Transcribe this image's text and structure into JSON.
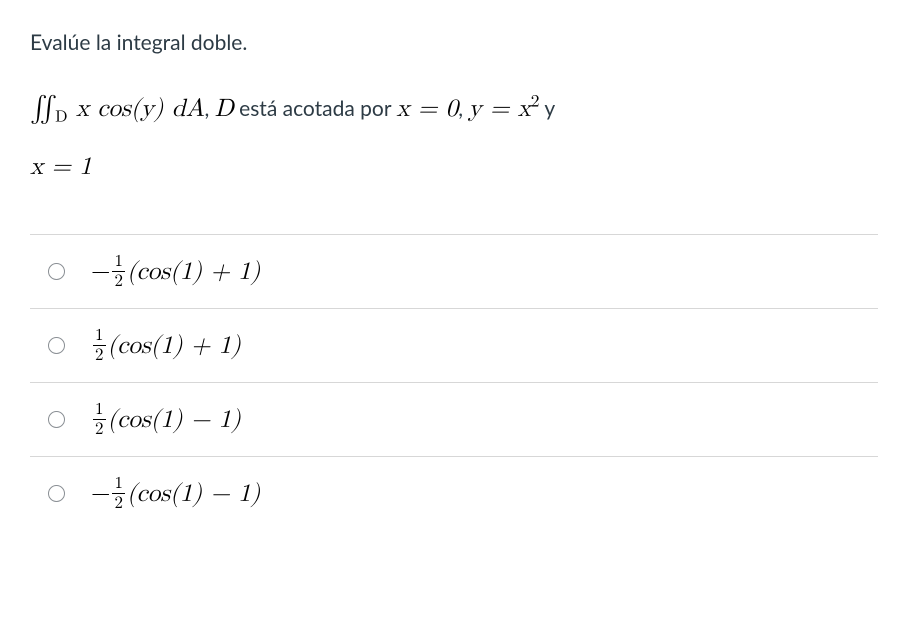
{
  "prompt": "Evalúe la integral doble.",
  "problem": {
    "integral_symbol": "∬",
    "integral_sub": "D",
    "integrand": "x cos(y) dA",
    "connector1": ", ",
    "var_D": "D",
    "text_mid": " está acotada por ",
    "cond1": "x = 0",
    "sep1": ", ",
    "cond2_lhs": "y = x",
    "cond2_exp": "2",
    "text_and": " y",
    "cond3": "x = 1"
  },
  "options": [
    {
      "prefix": "−",
      "num": "1",
      "den": "2",
      "body": "(cos(1) + 1)"
    },
    {
      "prefix": "",
      "num": "1",
      "den": "2",
      "body": "(cos(1) + 1)"
    },
    {
      "prefix": "",
      "num": "1",
      "den": "2",
      "body": "(cos(1) − 1)"
    },
    {
      "prefix": "−",
      "num": "1",
      "den": "2",
      "body": "(cos(1) − 1)"
    }
  ],
  "colors": {
    "text": "#2d3b45",
    "math": "#000000",
    "divider": "#d7d7d7",
    "radio_border": "#8a8f94",
    "background": "#ffffff"
  }
}
